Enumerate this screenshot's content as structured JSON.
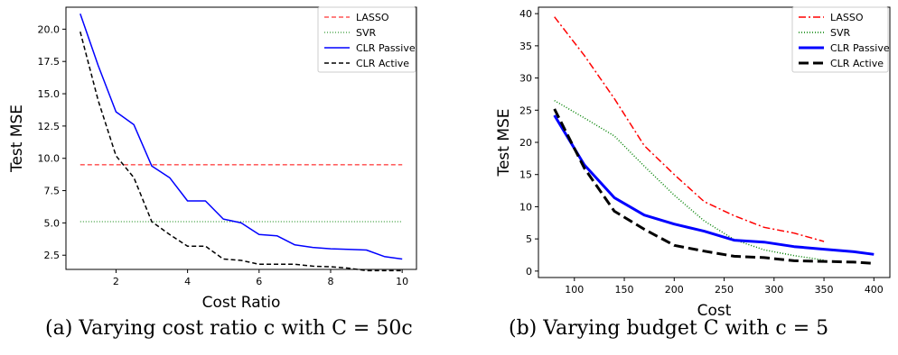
{
  "chart_data": [
    {
      "type": "line",
      "xlabel": "Cost Ratio",
      "ylabel": "Test MSE",
      "xlim": [
        0.6,
        10.4
      ],
      "ylim": [
        1.4,
        21.7
      ],
      "xticks": [
        2,
        4,
        6,
        8,
        10
      ],
      "yticks": [
        2.5,
        5.0,
        7.5,
        10.0,
        12.5,
        15.0,
        17.5,
        20.0
      ],
      "ytick_labels": [
        "2.5",
        "5.0",
        "7.5",
        "10.0",
        "12.5",
        "15.0",
        "17.5",
        "20.0"
      ],
      "legend_position": "top-right",
      "caption": "(a) Varying cost ratio c with C = 50c",
      "series": [
        {
          "name": "LASSO",
          "color": "#ff0000",
          "style": "dashed",
          "width": 1,
          "x": [
            1,
            10
          ],
          "y": [
            9.5,
            9.5
          ]
        },
        {
          "name": "SVR",
          "color": "#008000",
          "style": "dotted",
          "width": 1,
          "x": [
            1,
            10
          ],
          "y": [
            5.1,
            5.1
          ]
        },
        {
          "name": "CLR Passive",
          "color": "#0000ff",
          "style": "solid",
          "width": 1.5,
          "x": [
            1,
            1.5,
            2,
            2.5,
            3,
            3.5,
            4,
            4.5,
            5,
            5.5,
            6,
            6.5,
            7,
            7.5,
            8,
            8.5,
            9,
            9.5,
            10
          ],
          "y": [
            21.2,
            17.2,
            13.6,
            12.6,
            9.4,
            8.5,
            6.7,
            6.7,
            5.3,
            5.0,
            4.1,
            4.0,
            3.3,
            3.1,
            3.0,
            2.95,
            2.9,
            2.4,
            2.2
          ]
        },
        {
          "name": "CLR Active",
          "color": "#000000",
          "style": "dashed",
          "width": 1.5,
          "x": [
            1,
            1.5,
            2,
            2.5,
            3,
            3.5,
            4,
            4.5,
            5,
            5.5,
            6,
            6.5,
            7,
            7.5,
            8,
            8.5,
            9,
            9.5,
            10
          ],
          "y": [
            19.8,
            14.5,
            10.2,
            8.5,
            5.1,
            4.1,
            3.2,
            3.2,
            2.2,
            2.1,
            1.8,
            1.8,
            1.8,
            1.65,
            1.6,
            1.5,
            1.3,
            1.3,
            1.3
          ]
        }
      ]
    },
    {
      "type": "line",
      "xlabel": "Cost",
      "ylabel": "Test MSE",
      "xlim": [
        64,
        416
      ],
      "ylim": [
        -1,
        41
      ],
      "xticks": [
        100,
        150,
        200,
        250,
        300,
        350,
        400
      ],
      "yticks": [
        0,
        5,
        10,
        15,
        20,
        25,
        30,
        35,
        40
      ],
      "ytick_labels": [
        "0",
        "5",
        "10",
        "15",
        "20",
        "25",
        "30",
        "35",
        "40"
      ],
      "legend_position": "top-right",
      "caption": "(b) Varying budget C with c = 5",
      "series": [
        {
          "name": "LASSO",
          "color": "#ff0000",
          "style": "dashdot",
          "width": 1.5,
          "x": [
            80,
            110,
            140,
            170,
            200,
            230,
            260,
            290,
            320,
            350
          ],
          "y": [
            39.5,
            33.5,
            26.8,
            19.5,
            15.0,
            10.8,
            8.6,
            6.8,
            5.9,
            4.6
          ]
        },
        {
          "name": "SVR",
          "color": "#008000",
          "style": "dotted",
          "width": 1.5,
          "x": [
            80,
            110,
            140,
            170,
            200,
            230,
            260,
            290,
            320,
            350
          ],
          "y": [
            26.5,
            23.8,
            21.0,
            16.3,
            11.8,
            7.8,
            4.9,
            3.3,
            2.4,
            1.7
          ]
        },
        {
          "name": "CLR Passive",
          "color": "#0000ff",
          "style": "solid",
          "width": 3,
          "x": [
            80,
            110,
            140,
            170,
            200,
            230,
            260,
            290,
            320,
            350,
            380,
            400
          ],
          "y": [
            24.2,
            16.5,
            11.4,
            8.7,
            7.3,
            6.2,
            4.8,
            4.5,
            3.8,
            3.4,
            3.0,
            2.6
          ]
        },
        {
          "name": "CLR Active",
          "color": "#000000",
          "style": "dashed",
          "width": 3,
          "x": [
            80,
            110,
            140,
            170,
            200,
            230,
            260,
            290,
            320,
            350,
            380,
            400
          ],
          "y": [
            25.2,
            16.0,
            9.3,
            6.5,
            4.0,
            3.1,
            2.3,
            2.1,
            1.6,
            1.5,
            1.4,
            1.2
          ]
        }
      ]
    }
  ]
}
